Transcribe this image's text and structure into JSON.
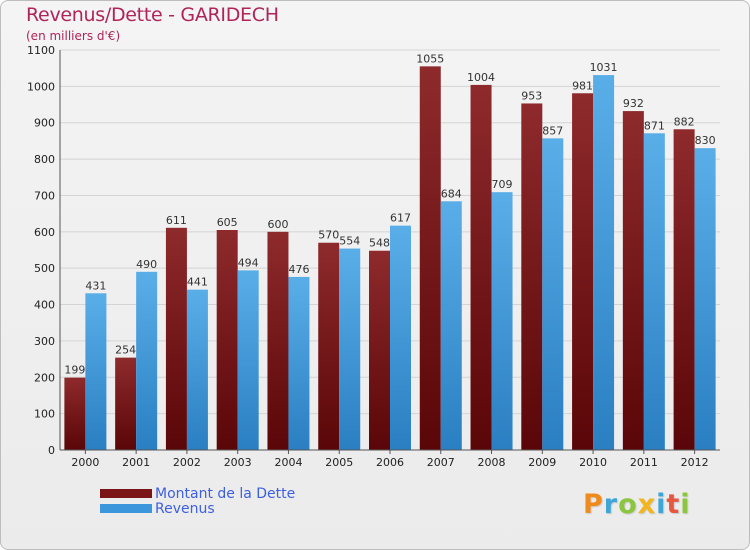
{
  "header": {
    "title": "Revenus/Dette - GARIDECH",
    "subtitle": "(en milliers d'€)"
  },
  "legend": {
    "items": [
      {
        "label": "Montant de la Dette",
        "color": "#7a1416"
      },
      {
        "label": "Revenus",
        "color": "#3b96dc"
      }
    ]
  },
  "logo": {
    "letters": [
      {
        "ch": "P",
        "color": "#f08a1c"
      },
      {
        "ch": "r",
        "color": "#3ea5d8"
      },
      {
        "ch": "o",
        "color": "#8cc63f"
      },
      {
        "ch": "x",
        "color": "#f3b51b"
      },
      {
        "ch": "i",
        "color": "#3ea5d8"
      },
      {
        "ch": "t",
        "color": "#e8563f"
      },
      {
        "ch": "i",
        "color": "#8cc63f"
      }
    ]
  },
  "chart_data": {
    "type": "bar",
    "title": "Revenus/Dette - GARIDECH",
    "subtitle": "(en milliers d'€)",
    "categories": [
      "2000",
      "2001",
      "2002",
      "2003",
      "2004",
      "2005",
      "2006",
      "2007",
      "2008",
      "2009",
      "2010",
      "2011",
      "2012"
    ],
    "series": [
      {
        "name": "Montant de la Dette",
        "color": "#7a1416",
        "values": [
          199,
          254,
          611,
          605,
          600,
          570,
          548,
          1055,
          1004,
          953,
          981,
          932,
          882
        ]
      },
      {
        "name": "Revenus",
        "color": "#3b96dc",
        "values": [
          431,
          490,
          441,
          494,
          476,
          554,
          617,
          684,
          709,
          857,
          1031,
          871,
          830
        ]
      }
    ],
    "ylim": [
      0,
      1100
    ],
    "yticks": [
      0,
      100,
      200,
      300,
      400,
      500,
      600,
      700,
      800,
      900,
      1000,
      1100
    ],
    "grid": true,
    "legend_position": "bottom-left"
  }
}
